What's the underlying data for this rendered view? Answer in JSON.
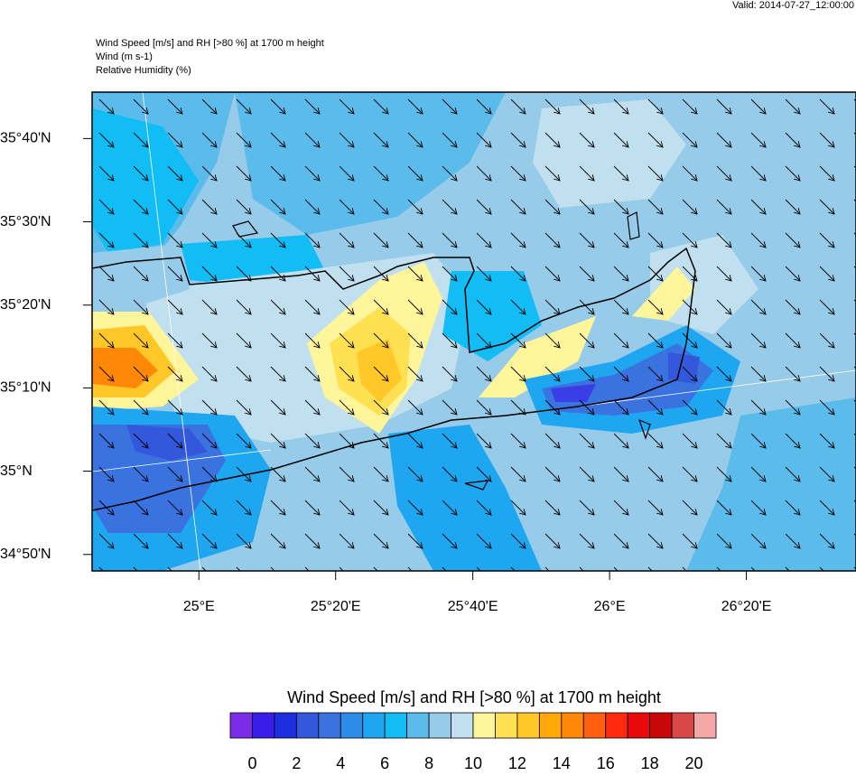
{
  "header": {
    "valid": "Valid: 2014-07-27_12:00:00",
    "title_lines": [
      "Wind Speed [m/s] and RH [>80 %] at 1700 m height",
      "Wind   (m s-1)",
      "Relative Humidity   (%)"
    ]
  },
  "map": {
    "xlim": [
      24.74,
      26.6
    ],
    "ylim": [
      34.8,
      35.76
    ],
    "xticks": [
      {
        "value": 25,
        "label": "25°E"
      },
      {
        "value": 25.333,
        "label": "25°20'E"
      },
      {
        "value": 25.667,
        "label": "25°40'E"
      },
      {
        "value": 26,
        "label": "26°E"
      },
      {
        "value": 26.333,
        "label": "26°20'E"
      }
    ],
    "yticks": [
      {
        "value": 34.833,
        "label": "34°50'N"
      },
      {
        "value": 35,
        "label": "35°N"
      },
      {
        "value": 35.167,
        "label": "35°10'N"
      },
      {
        "value": 35.333,
        "label": "35°20'N"
      },
      {
        "value": 35.5,
        "label": "35°30'N"
      },
      {
        "value": 35.667,
        "label": "35°40'N"
      }
    ]
  },
  "colorbar": {
    "title": "Wind Speed [m/s] and RH [>80 %] at 1700 m height",
    "colors": [
      "#7b2ce8",
      "#3a1de8",
      "#1c2ee0",
      "#3458dc",
      "#3a72e0",
      "#2c8ce8",
      "#1ea6f0",
      "#12bcf4",
      "#5bbcec",
      "#96cbe9",
      "#c0e0f0",
      "#fff59a",
      "#ffe050",
      "#ffc828",
      "#ffa808",
      "#ff8808",
      "#ff6010",
      "#ff2a10",
      "#e80a0a",
      "#c80808",
      "#d84848",
      "#f4a8a8"
    ],
    "lim": [
      -1,
      21
    ],
    "ticks": [
      0,
      2,
      4,
      6,
      8,
      10,
      12,
      14,
      16,
      18,
      20
    ]
  }
}
